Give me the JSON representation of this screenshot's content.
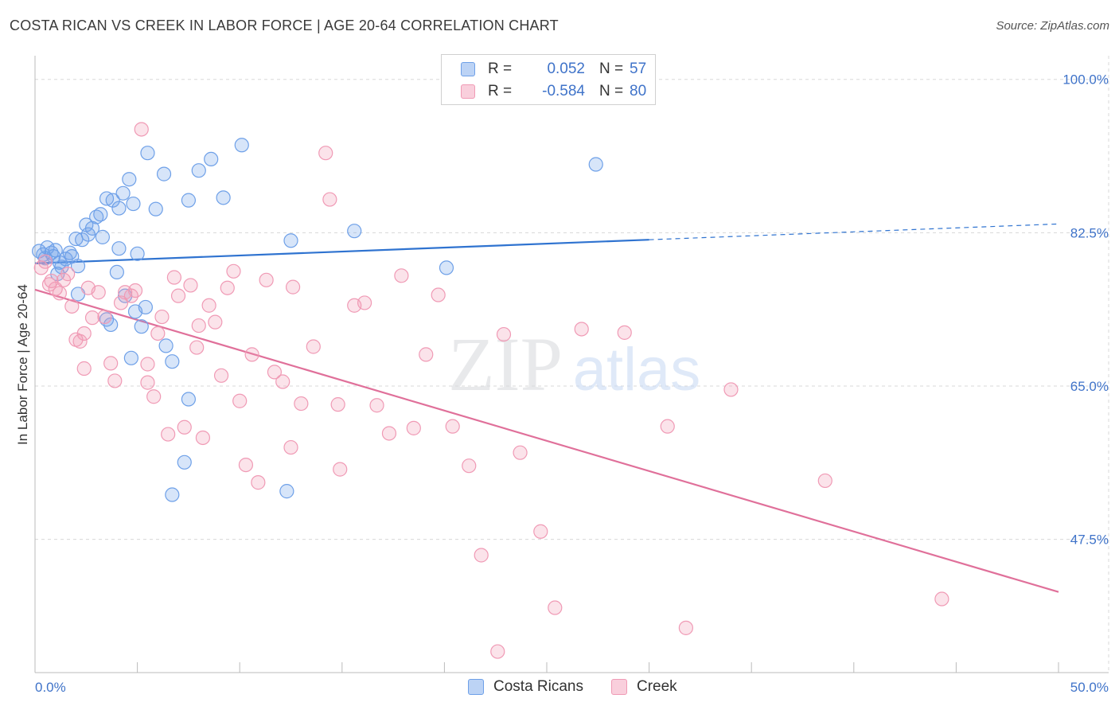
{
  "header": {
    "title": "COSTA RICAN VS CREEK IN LABOR FORCE | AGE 20-64 CORRELATION CHART",
    "source": "Source: ZipAtlas.com"
  },
  "legend": {
    "rows": [
      {
        "r_label": "R =",
        "r_value": "0.052",
        "n_label": "N =",
        "n_value": "57",
        "color": "#6ea0e8"
      },
      {
        "r_label": "R =",
        "r_value": "-0.584",
        "n_label": "N =",
        "n_value": "80",
        "color": "#f09ab5"
      }
    ]
  },
  "bottom_legend": [
    {
      "label": "Costa Ricans",
      "color": "#6ea0e8"
    },
    {
      "label": "Creek",
      "color": "#f09ab5"
    }
  ],
  "chart_data": {
    "type": "scatter",
    "ylabel": "In Labor Force | Age 20-64",
    "xlim": [
      0,
      50
    ],
    "ylim": [
      32.3,
      102.7
    ],
    "y_ticks": [
      {
        "value": 100,
        "label": "100.0%"
      },
      {
        "value": 82.5,
        "label": "82.5%"
      },
      {
        "value": 65,
        "label": "65.0%"
      },
      {
        "value": 47.5,
        "label": "47.5%"
      }
    ],
    "x_tick_labels": {
      "min": "0.0%",
      "max": "50.0%"
    },
    "grid": true,
    "legend_position": "top-center",
    "watermark": {
      "zip": "ZIP",
      "atlas": "atlas"
    },
    "series": [
      {
        "name": "Costa Ricans",
        "color": "#6ea0e8",
        "trend": {
          "x0": 0,
          "y0": 79.0,
          "x1": 30,
          "y1": 81.7,
          "dash_to_x": 50,
          "dash_to_y": 83.5
        },
        "points": [
          [
            0.2,
            80.4
          ],
          [
            0.4,
            80.0
          ],
          [
            0.5,
            79.6
          ],
          [
            0.6,
            80.8
          ],
          [
            0.8,
            80.2
          ],
          [
            0.9,
            79.8
          ],
          [
            1.0,
            80.5
          ],
          [
            1.1,
            77.8
          ],
          [
            1.2,
            79.1
          ],
          [
            1.3,
            78.6
          ],
          [
            1.5,
            79.5
          ],
          [
            1.7,
            80.2
          ],
          [
            1.8,
            79.8
          ],
          [
            2.0,
            81.8
          ],
          [
            2.1,
            78.7
          ],
          [
            2.3,
            81.7
          ],
          [
            2.5,
            83.4
          ],
          [
            2.6,
            82.3
          ],
          [
            2.8,
            83.0
          ],
          [
            3.0,
            84.3
          ],
          [
            3.2,
            84.6
          ],
          [
            3.3,
            82.0
          ],
          [
            3.5,
            86.4
          ],
          [
            3.8,
            86.2
          ],
          [
            4.1,
            85.3
          ],
          [
            4.3,
            87.0
          ],
          [
            4.6,
            88.6
          ],
          [
            4.8,
            85.8
          ],
          [
            5.5,
            91.6
          ],
          [
            5.9,
            85.2
          ],
          [
            6.3,
            89.2
          ],
          [
            7.5,
            86.2
          ],
          [
            8.0,
            89.6
          ],
          [
            8.6,
            90.9
          ],
          [
            9.2,
            86.5
          ],
          [
            10.1,
            92.5
          ],
          [
            12.5,
            81.6
          ],
          [
            15.6,
            82.7
          ],
          [
            20.1,
            78.5
          ],
          [
            27.4,
            90.3
          ],
          [
            4.0,
            78.0
          ],
          [
            4.1,
            80.7
          ],
          [
            4.4,
            75.3
          ],
          [
            4.9,
            73.5
          ],
          [
            5.0,
            80.1
          ],
          [
            3.5,
            72.6
          ],
          [
            3.7,
            72.0
          ],
          [
            5.2,
            71.8
          ],
          [
            5.4,
            74.0
          ],
          [
            6.4,
            69.6
          ],
          [
            6.7,
            67.8
          ],
          [
            4.7,
            68.2
          ],
          [
            2.1,
            75.5
          ],
          [
            7.5,
            63.5
          ],
          [
            7.3,
            56.3
          ],
          [
            6.7,
            52.6
          ],
          [
            12.3,
            53.0
          ]
        ]
      },
      {
        "name": "Creek",
        "color": "#f09ab5",
        "trend": {
          "x0": 0,
          "y0": 76.0,
          "x1": 50,
          "y1": 41.5
        },
        "points": [
          [
            0.3,
            78.5
          ],
          [
            0.5,
            79.2
          ],
          [
            0.7,
            76.6
          ],
          [
            0.8,
            77.0
          ],
          [
            1.0,
            76.1
          ],
          [
            1.2,
            75.6
          ],
          [
            1.4,
            77.1
          ],
          [
            1.6,
            77.8
          ],
          [
            1.8,
            74.1
          ],
          [
            2.0,
            70.3
          ],
          [
            2.2,
            70.1
          ],
          [
            2.4,
            67.0
          ],
          [
            2.6,
            76.2
          ],
          [
            2.8,
            72.8
          ],
          [
            3.1,
            75.7
          ],
          [
            3.4,
            72.9
          ],
          [
            3.7,
            67.6
          ],
          [
            3.9,
            65.6
          ],
          [
            4.2,
            74.5
          ],
          [
            4.4,
            75.7
          ],
          [
            4.7,
            75.3
          ],
          [
            4.9,
            75.9
          ],
          [
            5.2,
            94.3
          ],
          [
            5.5,
            65.4
          ],
          [
            5.8,
            63.8
          ],
          [
            6.0,
            71.0
          ],
          [
            6.2,
            72.9
          ],
          [
            6.5,
            59.5
          ],
          [
            6.8,
            77.4
          ],
          [
            7.0,
            75.3
          ],
          [
            7.3,
            60.3
          ],
          [
            7.6,
            76.5
          ],
          [
            7.9,
            69.4
          ],
          [
            8.2,
            59.1
          ],
          [
            8.5,
            74.2
          ],
          [
            8.8,
            72.3
          ],
          [
            9.1,
            66.2
          ],
          [
            9.4,
            76.2
          ],
          [
            9.7,
            78.1
          ],
          [
            10.0,
            63.3
          ],
          [
            10.3,
            56.0
          ],
          [
            10.6,
            68.6
          ],
          [
            10.9,
            54.0
          ],
          [
            11.3,
            77.1
          ],
          [
            11.7,
            66.6
          ],
          [
            12.1,
            65.5
          ],
          [
            12.6,
            76.3
          ],
          [
            13.0,
            63.0
          ],
          [
            13.6,
            69.5
          ],
          [
            14.2,
            91.6
          ],
          [
            14.4,
            86.3
          ],
          [
            14.9,
            55.5
          ],
          [
            15.6,
            74.2
          ],
          [
            16.1,
            74.5
          ],
          [
            16.7,
            62.8
          ],
          [
            17.3,
            59.6
          ],
          [
            17.9,
            77.6
          ],
          [
            18.5,
            60.2
          ],
          [
            19.1,
            68.6
          ],
          [
            19.7,
            75.4
          ],
          [
            20.4,
            60.4
          ],
          [
            21.2,
            55.9
          ],
          [
            21.8,
            45.7
          ],
          [
            22.6,
            34.7
          ],
          [
            22.9,
            70.9
          ],
          [
            23.7,
            57.4
          ],
          [
            24.7,
            48.4
          ],
          [
            25.4,
            39.7
          ],
          [
            26.7,
            71.5
          ],
          [
            28.8,
            71.1
          ],
          [
            30.9,
            60.4
          ],
          [
            31.8,
            37.4
          ],
          [
            34.0,
            64.6
          ],
          [
            38.6,
            54.2
          ],
          [
            44.3,
            40.7
          ],
          [
            2.4,
            71.0
          ],
          [
            5.5,
            67.5
          ],
          [
            8.0,
            71.9
          ],
          [
            12.5,
            58.0
          ],
          [
            14.8,
            62.9
          ]
        ]
      }
    ]
  }
}
